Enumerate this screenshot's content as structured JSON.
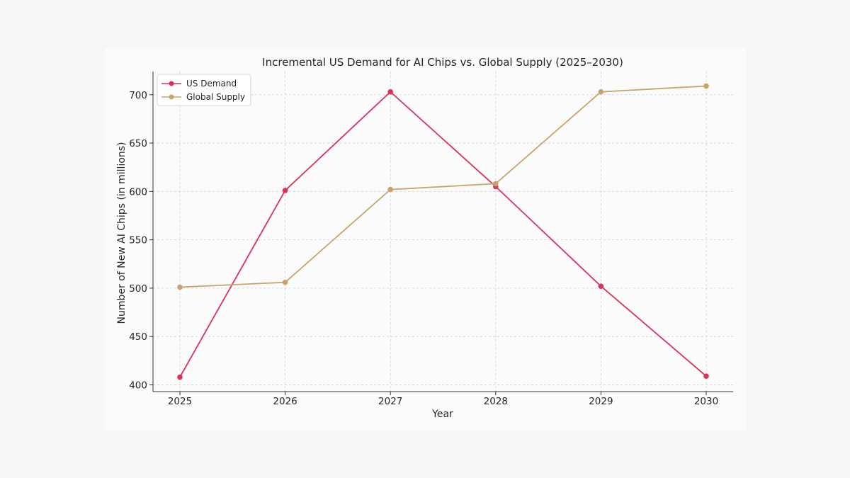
{
  "chart_data": {
    "type": "line",
    "title": "Incremental US Demand for AI Chips vs. Global Supply (2025–2030)",
    "xlabel": "Year",
    "ylabel": "Number of New AI Chips (in millions)",
    "categories": [
      "2025",
      "2026",
      "2027",
      "2028",
      "2029",
      "2030"
    ],
    "yticks": [
      "400",
      "450",
      "500",
      "550",
      "600",
      "650",
      "700"
    ],
    "ylim": [
      393,
      724
    ],
    "grid": true,
    "legend_position": "top-left",
    "series": [
      {
        "name": "US Demand",
        "color": "#d9335a",
        "values": [
          408,
          601,
          703,
          605,
          502,
          409
        ]
      },
      {
        "name": "Global Supply",
        "color": "#c7a46c",
        "values": [
          501,
          506,
          602,
          608,
          703,
          709
        ]
      }
    ]
  }
}
